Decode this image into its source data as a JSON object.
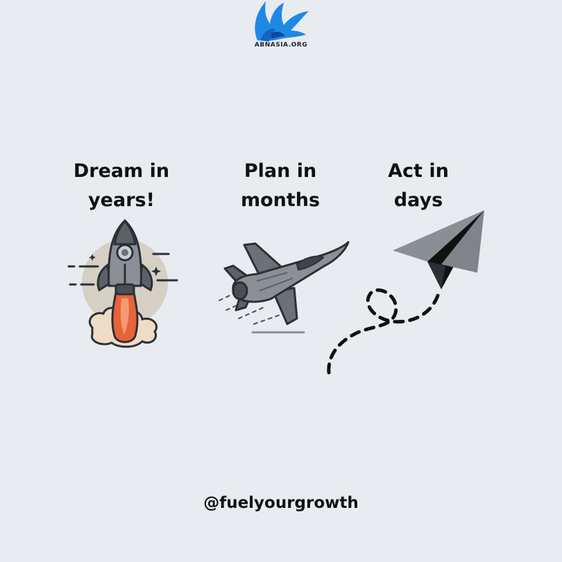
{
  "brand": {
    "logo_icon": "eagle-logo-icon",
    "logo_text": "ABNASIA.ORG",
    "logo_color": "#1e88e5"
  },
  "steps": [
    {
      "caption": "Dream in\nyears!",
      "icon": "rocket-icon"
    },
    {
      "caption": "Plan in\nmonths",
      "icon": "fighter-jet-icon"
    },
    {
      "caption": "Act in\ndays",
      "icon": "paper-plane-icon"
    }
  ],
  "footer": {
    "handle": "@fuelyourgrowth"
  },
  "colors": {
    "background": "#e8ebef",
    "text": "#111111",
    "flame": "#e8623a"
  }
}
